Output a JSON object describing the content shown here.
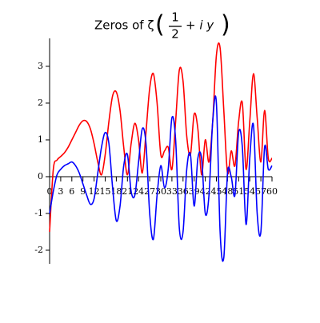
{
  "chart_data": {
    "type": "line",
    "title": {
      "text": "Zeros of ζ",
      "numerator": "1",
      "denominator": "2",
      "suffix": "+ i y"
    },
    "x": [
      0,
      1,
      2,
      3,
      4,
      5,
      6,
      7,
      8,
      9,
      10,
      11,
      12,
      13,
      14,
      15,
      16,
      17,
      18,
      19,
      20,
      21,
      22,
      23,
      24,
      25,
      26,
      27,
      28,
      29,
      30,
      31,
      32,
      33,
      34,
      35,
      36,
      37,
      38,
      39,
      40,
      41,
      42,
      43,
      44,
      45,
      46,
      47,
      48,
      49,
      50,
      51,
      52,
      53,
      54,
      55,
      56,
      57,
      58,
      59,
      60
    ],
    "series": [
      {
        "name": "red",
        "color": "#ff0000",
        "values": [
          -1.5,
          0.2,
          0.45,
          0.55,
          0.65,
          0.8,
          1.0,
          1.2,
          1.4,
          1.52,
          1.5,
          1.3,
          0.9,
          0.4,
          0.05,
          0.6,
          1.5,
          2.2,
          2.3,
          1.8,
          0.8,
          0.05,
          0.9,
          1.45,
          1.0,
          0.1,
          1.2,
          2.4,
          2.8,
          2.0,
          0.6,
          0.7,
          0.8,
          0.2,
          1.5,
          2.9,
          2.6,
          1.1,
          0.6,
          1.7,
          1.3,
          0.05,
          1.0,
          0.4,
          1.5,
          3.3,
          3.5,
          1.8,
          0.1,
          0.7,
          0.3,
          1.5,
          2.0,
          0.2,
          1.5,
          2.8,
          1.6,
          0.4,
          1.8,
          0.5,
          0.5
        ]
      },
      {
        "name": "blue",
        "color": "#0000ff",
        "values": [
          -1.0,
          -0.4,
          0.05,
          0.2,
          0.3,
          0.35,
          0.4,
          0.3,
          0.1,
          -0.2,
          -0.5,
          -0.75,
          -0.6,
          0.1,
          0.8,
          1.2,
          0.9,
          -0.3,
          -1.2,
          -0.8,
          0.3,
          0.6,
          -0.4,
          -0.5,
          0.4,
          1.3,
          0.9,
          -1.0,
          -1.7,
          -0.5,
          0.3,
          -0.3,
          0.2,
          1.6,
          1.0,
          -1.4,
          -1.5,
          0.2,
          0.6,
          -0.8,
          0.5,
          0.5,
          -1.0,
          -0.5,
          1.5,
          2.0,
          -1.5,
          -2.2,
          0.1,
          0.0,
          -0.5,
          1.2,
          0.8,
          -1.3,
          0.5,
          1.4,
          -1.0,
          -1.5,
          0.8,
          0.2,
          0.3
        ]
      }
    ],
    "xlim": [
      0,
      60
    ],
    "ylim": [
      -2.37,
      3.76
    ],
    "xticks": [
      0,
      3,
      6,
      9,
      12,
      15,
      18,
      21,
      24,
      27,
      30,
      33,
      36,
      39,
      42,
      45,
      48,
      51,
      54,
      57,
      60
    ],
    "yticks": [
      -2,
      -1,
      0,
      1,
      2,
      3
    ]
  }
}
